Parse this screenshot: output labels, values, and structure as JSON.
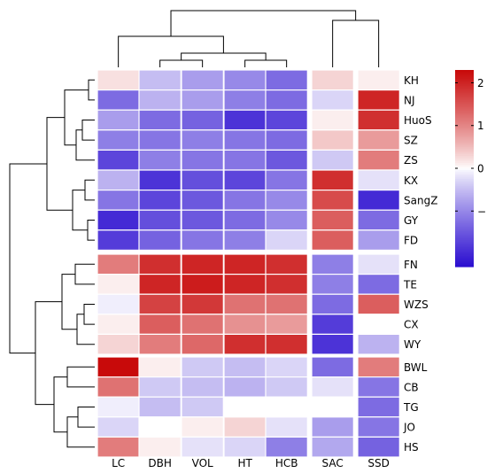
{
  "chart_data": {
    "type": "heatmap",
    "columns": [
      "LC",
      "DBH",
      "VOL",
      "HT",
      "HCB",
      "SAC",
      "SSD"
    ],
    "rows": [
      "KH",
      "NJ",
      "HuoS",
      "SZ",
      "ZS",
      "KX",
      "SangZ",
      "GY",
      "FD",
      "FN",
      "TE",
      "WZS",
      "CX",
      "WY",
      "BWL",
      "CB",
      "TG",
      "JO",
      "HS"
    ],
    "values": [
      [
        0.2,
        -0.5,
        -0.8,
        -1.0,
        -1.3,
        0.3,
        0.1
      ],
      [
        -1.3,
        -0.6,
        -0.8,
        -1.1,
        -1.3,
        -0.3,
        2.0
      ],
      [
        -0.8,
        -1.3,
        -1.4,
        -1.9,
        -1.7,
        0.1,
        1.9
      ],
      [
        -1.1,
        -1.2,
        -1.1,
        -1.2,
        -1.3,
        0.4,
        0.8
      ],
      [
        -1.7,
        -1.1,
        -1.2,
        -1.2,
        -1.5,
        -0.4,
        1.1
      ],
      [
        -0.6,
        -1.9,
        -1.6,
        -1.7,
        -1.2,
        1.9,
        -0.2
      ],
      [
        -1.2,
        -1.7,
        -1.5,
        -1.2,
        -1.0,
        1.6,
        -2.0
      ],
      [
        -2.0,
        -1.6,
        -1.5,
        -1.3,
        -1.0,
        1.4,
        -1.3
      ],
      [
        -1.8,
        -1.4,
        -1.2,
        -1.1,
        -0.3,
        1.4,
        -0.8
      ],
      [
        1.1,
        1.9,
        2.0,
        2.0,
        1.9,
        -1.1,
        -0.2
      ],
      [
        0.1,
        2.0,
        2.1,
        2.0,
        1.9,
        -1.1,
        -1.3
      ],
      [
        -0.1,
        1.7,
        1.8,
        1.2,
        1.2,
        -1.3,
        1.4
      ],
      [
        0.1,
        1.4,
        1.2,
        0.9,
        0.8,
        -1.8,
        0.0
      ],
      [
        0.3,
        1.1,
        1.3,
        1.9,
        1.9,
        -1.9,
        -0.6
      ],
      [
        2.3,
        0.1,
        -0.4,
        -0.5,
        -0.3,
        -1.3,
        1.1
      ],
      [
        1.2,
        -0.4,
        -0.5,
        -0.6,
        -0.4,
        -0.2,
        -1.2
      ],
      [
        -0.1,
        -0.5,
        -0.4,
        0.0,
        0.0,
        0.0,
        -1.3
      ],
      [
        -0.3,
        0.0,
        0.1,
        0.3,
        -0.2,
        -0.8,
        -1.2
      ],
      [
        1.1,
        0.1,
        -0.2,
        -0.3,
        -1.1,
        -0.7,
        -1.4
      ]
    ],
    "colorbar": {
      "ticks": [
        -1,
        0,
        1,
        2
      ],
      "range": [
        -2.3,
        2.3
      ]
    },
    "colors": {
      "low": "#2c0fd0",
      "mid": "#ffffff",
      "high": "#c80a0a"
    },
    "legend_position": "right",
    "row_dendrogram": true,
    "column_dendrogram": true,
    "row_cluster_breaks": [
      "FD",
      "WY"
    ],
    "column_cluster_breaks": [
      "HCB",
      "SAC"
    ]
  }
}
